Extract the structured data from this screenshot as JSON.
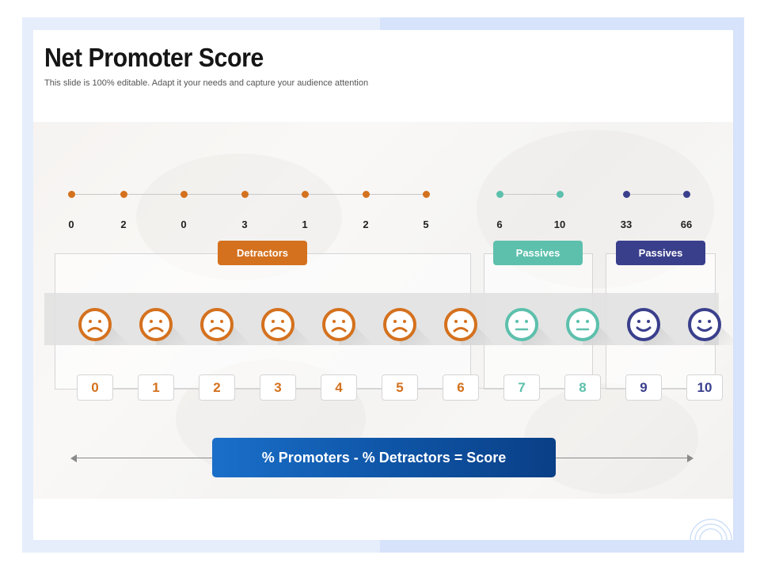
{
  "slide": {
    "title": "Net Promoter Score",
    "subtitle": "This slide is 100% editable. Adapt it your needs and capture your audience attention"
  },
  "colors": {
    "detractor": "#d4711e",
    "passive": "#5cc0ac",
    "promoter": "#3a3f8c",
    "formula_start": "#1a6fc9",
    "formula_end": "#0a3f86"
  },
  "timeline": {
    "values": [
      "0",
      "2",
      "0",
      "3",
      "1",
      "2",
      "5",
      "6",
      "10",
      "33",
      "66"
    ]
  },
  "groups": {
    "detractors_label": "Detractors",
    "passives_label": "Passives",
    "promoters_label": "Passives"
  },
  "faces": [
    "sad-face-icon",
    "sad-face-icon",
    "sad-face-icon",
    "sad-face-icon",
    "sad-face-icon",
    "sad-face-icon",
    "sad-face-icon",
    "neutral-face-icon",
    "neutral-face-icon",
    "happy-face-icon",
    "happy-face-icon"
  ],
  "scale": {
    "scores": [
      "0",
      "1",
      "2",
      "3",
      "4",
      "5",
      "6",
      "7",
      "8",
      "9",
      "10"
    ]
  },
  "formula": {
    "text": "% Promoters - % Detractors = Score"
  }
}
